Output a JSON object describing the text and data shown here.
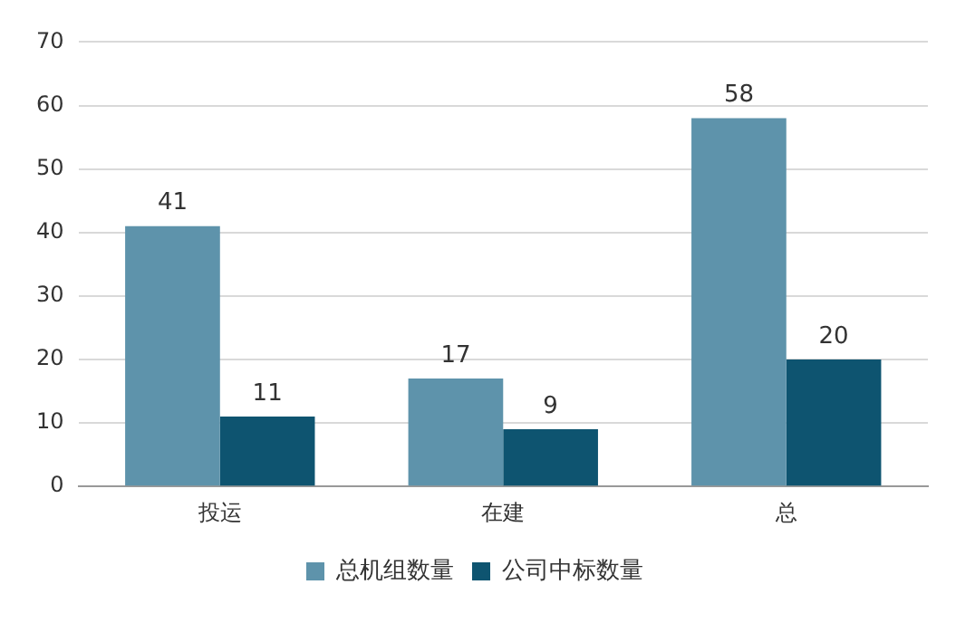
{
  "chart_data": {
    "type": "bar",
    "categories": [
      "投运",
      "在建",
      "总"
    ],
    "series": [
      {
        "name": "总机组数量",
        "color": "#5e93ab",
        "values": [
          41,
          17,
          58
        ]
      },
      {
        "name": "公司中标数量",
        "color": "#0e5470",
        "values": [
          11,
          9,
          20
        ]
      }
    ],
    "ylim": [
      0,
      70
    ],
    "yticks": [
      0,
      10,
      20,
      30,
      40,
      50,
      60,
      70
    ],
    "grid": "y",
    "legend": "bottom",
    "data_labels": true
  }
}
